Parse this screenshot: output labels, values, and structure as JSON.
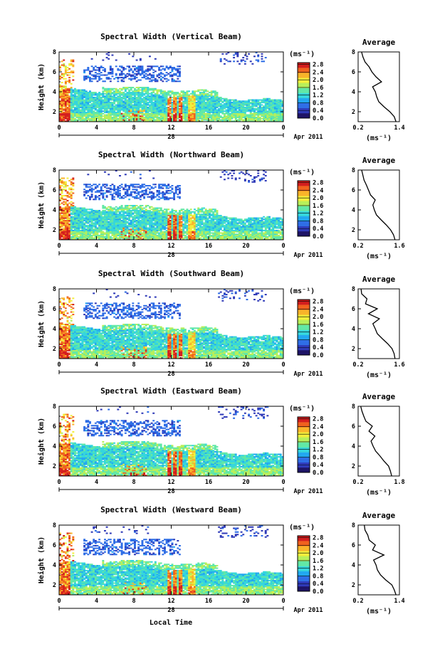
{
  "figure": {
    "xlabel": "Local Time",
    "date_label": "Apr 2011",
    "day_label": "28"
  },
  "chart_data": [
    {
      "type": "heatmap",
      "title": "Spectral Width (Vertical Beam)",
      "ylabel": "Height (km)",
      "xlabel": "Local Time",
      "x_ticks": [
        "0",
        "4",
        "8",
        "12",
        "16",
        "20",
        "0"
      ],
      "y_ticks": [
        "2",
        "4",
        "6",
        "8"
      ],
      "xlim": [
        0,
        24
      ],
      "ylim": [
        1,
        8
      ],
      "colorbar": {
        "unit": "(ms⁻¹)",
        "ticks": [
          "0.0",
          "0.4",
          "0.8",
          "1.2",
          "1.6",
          "2.0",
          "2.4",
          "2.8"
        ],
        "range": [
          0,
          2.9
        ]
      },
      "seed": 11,
      "profile": {
        "title": "Average",
        "unit": "(ms⁻¹)",
        "x_ticks": [
          "0.2",
          "1.4"
        ],
        "xlim": [
          0.2,
          1.4
        ],
        "y_ticks": [
          "2",
          "4",
          "6",
          "8"
        ],
        "heights": [
          1,
          1.5,
          2,
          2.5,
          3,
          3.5,
          4,
          4.5,
          5,
          5.5,
          6,
          6.5,
          7,
          7.5,
          8
        ],
        "values": [
          1.3,
          1.25,
          1.12,
          0.95,
          0.8,
          0.74,
          0.7,
          0.62,
          0.88,
          0.72,
          0.6,
          0.52,
          0.4,
          0.34,
          0.3
        ]
      }
    },
    {
      "type": "heatmap",
      "title": "Spectral Width (Northward Beam)",
      "ylabel": "Height (km)",
      "xlabel": "Local Time",
      "x_ticks": [
        "0",
        "4",
        "8",
        "12",
        "16",
        "20",
        "0"
      ],
      "y_ticks": [
        "2",
        "4",
        "6",
        "8"
      ],
      "xlim": [
        0,
        24
      ],
      "ylim": [
        1,
        8
      ],
      "colorbar": {
        "unit": "(ms⁻¹)",
        "ticks": [
          "0.0",
          "0.4",
          "0.8",
          "1.2",
          "1.6",
          "2.0",
          "2.4",
          "2.8"
        ],
        "range": [
          0,
          2.9
        ]
      },
      "seed": 23,
      "profile": {
        "title": "Average",
        "unit": "(ms⁻¹)",
        "x_ticks": [
          "0.2",
          "1.6"
        ],
        "xlim": [
          0.2,
          1.6
        ],
        "y_ticks": [
          "2",
          "4",
          "6",
          "8"
        ],
        "heights": [
          1,
          1.5,
          2,
          2.5,
          3,
          3.5,
          4,
          4.5,
          5,
          5.5,
          6,
          6.5,
          7,
          7.5,
          8
        ],
        "values": [
          1.45,
          1.4,
          1.3,
          1.15,
          0.98,
          0.82,
          0.75,
          0.7,
          0.78,
          0.62,
          0.55,
          0.48,
          0.4,
          0.36,
          0.32
        ]
      }
    },
    {
      "type": "heatmap",
      "title": "Spectral Width (Southward Beam)",
      "ylabel": "Height (km)",
      "xlabel": "Local Time",
      "x_ticks": [
        "0",
        "4",
        "8",
        "12",
        "16",
        "20",
        "0"
      ],
      "y_ticks": [
        "2",
        "4",
        "6",
        "8"
      ],
      "xlim": [
        0,
        24
      ],
      "ylim": [
        1,
        8
      ],
      "colorbar": {
        "unit": "(ms⁻¹)",
        "ticks": [
          "0.0",
          "0.4",
          "0.8",
          "1.2",
          "1.6",
          "2.0",
          "2.4",
          "2.8"
        ],
        "range": [
          0,
          2.9
        ]
      },
      "seed": 37,
      "profile": {
        "title": "Average",
        "unit": "(ms⁻¹)",
        "x_ticks": [
          "0.2",
          "1.6"
        ],
        "xlim": [
          0.2,
          1.6
        ],
        "y_ticks": [
          "2",
          "4",
          "6",
          "8"
        ],
        "heights": [
          1,
          1.5,
          2,
          2.5,
          3,
          3.5,
          4,
          4.5,
          5,
          5.5,
          6,
          6.5,
          7,
          7.5,
          8
        ],
        "values": [
          1.45,
          1.42,
          1.35,
          1.2,
          1.02,
          0.85,
          0.78,
          0.7,
          0.92,
          0.55,
          0.85,
          0.45,
          0.5,
          0.32,
          0.3
        ]
      }
    },
    {
      "type": "heatmap",
      "title": "Spectral Width (Eastward Beam)",
      "ylabel": "Height (km)",
      "xlabel": "Local Time",
      "x_ticks": [
        "0",
        "4",
        "8",
        "12",
        "16",
        "20",
        "0"
      ],
      "y_ticks": [
        "2",
        "4",
        "6",
        "8"
      ],
      "xlim": [
        0,
        24
      ],
      "ylim": [
        1,
        8
      ],
      "colorbar": {
        "unit": "(ms⁻¹)",
        "ticks": [
          "0.0",
          "0.4",
          "0.8",
          "1.2",
          "1.6",
          "2.0",
          "2.4",
          "2.8"
        ],
        "range": [
          0,
          2.9
        ]
      },
      "seed": 51,
      "profile": {
        "title": "Average",
        "unit": "(ms⁻¹)",
        "x_ticks": [
          "0.2",
          "1.8"
        ],
        "xlim": [
          0.2,
          1.8
        ],
        "y_ticks": [
          "2",
          "4",
          "6",
          "8"
        ],
        "heights": [
          1,
          1.5,
          2,
          2.5,
          3,
          3.5,
          4,
          4.5,
          5,
          5.5,
          6,
          6.5,
          7,
          7.5,
          8
        ],
        "values": [
          1.5,
          1.45,
          1.38,
          1.2,
          1.05,
          0.88,
          0.78,
          0.7,
          0.85,
          0.62,
          0.75,
          0.5,
          0.42,
          0.35,
          0.3
        ]
      }
    },
    {
      "type": "heatmap",
      "title": "Spectral Width (Westward Beam)",
      "ylabel": "Height (km)",
      "xlabel": "Local Time",
      "x_ticks": [
        "0",
        "4",
        "8",
        "12",
        "16",
        "20",
        "0"
      ],
      "y_ticks": [
        "2",
        "4",
        "6",
        "8"
      ],
      "xlim": [
        0,
        24
      ],
      "ylim": [
        1,
        8
      ],
      "colorbar": {
        "unit": "(ms⁻¹)",
        "ticks": [
          "0.0",
          "0.4",
          "0.8",
          "1.2",
          "1.6",
          "2.0",
          "2.4",
          "2.8"
        ],
        "range": [
          0,
          2.9
        ]
      },
      "seed": 67,
      "profile": {
        "title": "Average",
        "unit": "(ms⁻¹)",
        "x_ticks": [
          "0.2",
          "1.4"
        ],
        "xlim": [
          0.2,
          1.4
        ],
        "y_ticks": [
          "2",
          "4",
          "6",
          "8"
        ],
        "heights": [
          1,
          1.5,
          2,
          2.5,
          3,
          3.5,
          4,
          4.5,
          5,
          5.5,
          6,
          6.5,
          7,
          7.5,
          8
        ],
        "values": [
          1.3,
          1.25,
          1.18,
          1.0,
          0.85,
          0.76,
          0.72,
          0.65,
          0.95,
          0.62,
          0.7,
          0.52,
          0.48,
          0.4,
          0.38
        ]
      }
    }
  ],
  "colors": {
    "colormap": [
      "#1e1466",
      "#2f3ab8",
      "#2f6ee6",
      "#22a8f0",
      "#35d6dc",
      "#62e8a6",
      "#b8ef5a",
      "#f2ef3c",
      "#f9b42a",
      "#f0621e",
      "#d41e1e"
    ]
  }
}
